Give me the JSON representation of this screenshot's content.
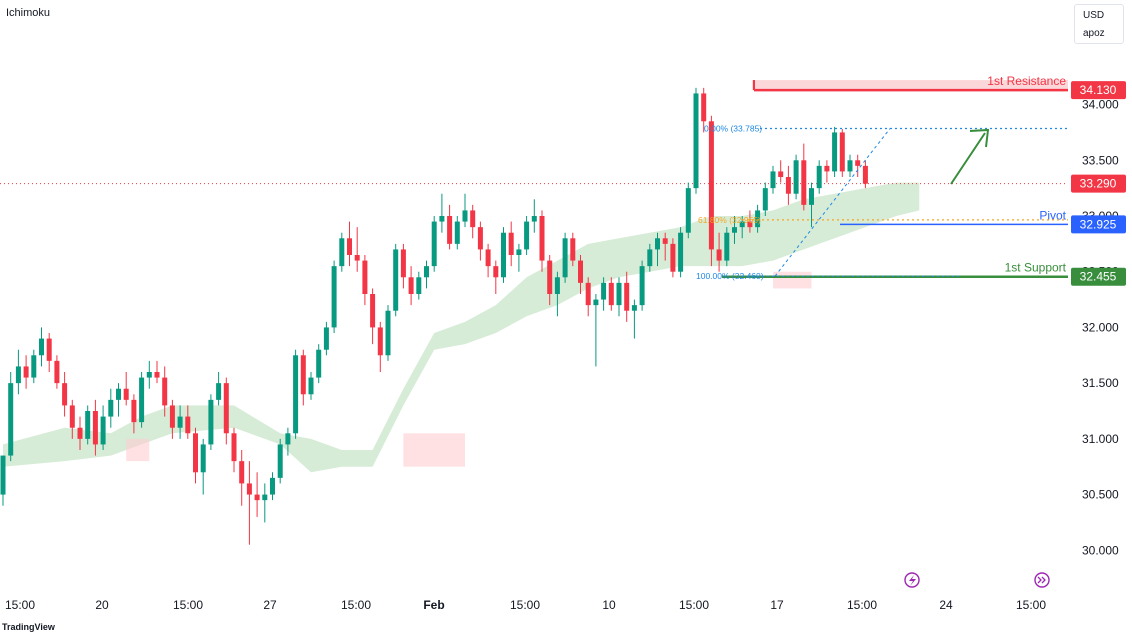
{
  "indicator": "Ichimoku",
  "currency": "USD",
  "unit": "apoz",
  "watermark": "TradingView",
  "colors": {
    "up": "#089981",
    "down": "#f23645",
    "resistance": "#f23645",
    "pivot": "#2962ff",
    "support": "#388e3c",
    "fib": "#1e88e5",
    "fib_mid": "#f5a623",
    "current": "#f23645",
    "kumo_bull": "#c8e6c9",
    "kumo_bear": "#ffcdd2"
  },
  "icons": [
    "lightning-icon",
    "forward-arrow-icon"
  ],
  "chart_data": {
    "type": "candlestick",
    "ylim": [
      29.85,
      34.4
    ],
    "ticks_y": [
      "34.000",
      "33.500",
      "33.000",
      "32.500",
      "32.000",
      "31.500",
      "31.000",
      "30.500",
      "30.000"
    ],
    "ticks_y_values": [
      34.0,
      33.5,
      33.0,
      32.5,
      32.0,
      31.5,
      31.0,
      30.5,
      30.0
    ],
    "ticks_x": [
      "15:00",
      "20",
      "15:00",
      "27",
      "15:00",
      "Feb",
      "15:00",
      "10",
      "15:00",
      "17",
      "15:00",
      "24",
      "15:00"
    ],
    "ticks_x_bold": [
      false,
      false,
      false,
      false,
      false,
      true,
      false,
      false,
      false,
      false,
      false,
      false,
      false
    ],
    "levels": [
      {
        "name": "1st Resistance",
        "value": 34.13,
        "label": "34.130",
        "kind": "resistance"
      },
      {
        "name": "Pivot",
        "value": 32.925,
        "label": "32.925",
        "kind": "pivot"
      },
      {
        "name": "1st Support",
        "value": 32.455,
        "label": "32.455",
        "kind": "support"
      }
    ],
    "current_price": {
      "value": 33.29,
      "label": "33.290"
    },
    "fib_levels": [
      {
        "label": "0.00% (33.785)",
        "value": 33.785
      },
      {
        "label": "61.80% (32.965)",
        "value": 32.965
      },
      {
        "label": "100.00% (32.460)",
        "value": 32.46
      }
    ],
    "candles": [
      [
        30.5,
        30.85,
        30.4,
        30.85
      ],
      [
        30.85,
        31.6,
        30.8,
        31.5
      ],
      [
        31.5,
        31.8,
        31.4,
        31.65
      ],
      [
        31.65,
        31.75,
        31.45,
        31.55
      ],
      [
        31.55,
        31.8,
        31.5,
        31.75
      ],
      [
        31.75,
        32.0,
        31.65,
        31.9
      ],
      [
        31.9,
        31.95,
        31.6,
        31.7
      ],
      [
        31.7,
        31.75,
        31.45,
        31.5
      ],
      [
        31.5,
        31.6,
        31.2,
        31.3
      ],
      [
        31.3,
        31.35,
        31.0,
        31.1
      ],
      [
        31.1,
        31.2,
        30.9,
        31.0
      ],
      [
        31.0,
        31.3,
        30.95,
        31.25
      ],
      [
        31.25,
        31.35,
        30.85,
        30.95
      ],
      [
        30.95,
        31.3,
        30.9,
        31.2
      ],
      [
        31.2,
        31.45,
        31.1,
        31.35
      ],
      [
        31.35,
        31.5,
        31.2,
        31.45
      ],
      [
        31.45,
        31.6,
        31.3,
        31.35
      ],
      [
        31.35,
        31.4,
        31.05,
        31.15
      ],
      [
        31.15,
        31.6,
        31.1,
        31.55
      ],
      [
        31.55,
        31.7,
        31.45,
        31.6
      ],
      [
        31.6,
        31.7,
        31.5,
        31.55
      ],
      [
        31.55,
        31.65,
        31.2,
        31.3
      ],
      [
        31.3,
        31.35,
        31.0,
        31.1
      ],
      [
        31.1,
        31.3,
        31.0,
        31.2
      ],
      [
        31.2,
        31.3,
        31.0,
        31.05
      ],
      [
        31.05,
        31.1,
        30.6,
        30.7
      ],
      [
        30.7,
        31.0,
        30.5,
        30.95
      ],
      [
        30.95,
        31.4,
        30.9,
        31.35
      ],
      [
        31.35,
        31.6,
        31.3,
        31.5
      ],
      [
        31.5,
        31.55,
        30.95,
        31.05
      ],
      [
        31.05,
        31.1,
        30.7,
        30.8
      ],
      [
        30.8,
        30.9,
        30.4,
        30.6
      ],
      [
        30.6,
        30.8,
        30.05,
        30.5
      ],
      [
        30.5,
        30.7,
        30.3,
        30.45
      ],
      [
        30.45,
        30.6,
        30.25,
        30.5
      ],
      [
        30.5,
        30.7,
        30.45,
        30.65
      ],
      [
        30.65,
        31.0,
        30.6,
        30.95
      ],
      [
        30.95,
        31.1,
        30.85,
        31.05
      ],
      [
        31.05,
        31.8,
        31.0,
        31.75
      ],
      [
        31.75,
        31.8,
        31.3,
        31.4
      ],
      [
        31.4,
        31.6,
        31.35,
        31.55
      ],
      [
        31.55,
        31.85,
        31.5,
        31.8
      ],
      [
        31.8,
        32.05,
        31.75,
        32.0
      ],
      [
        32.0,
        32.6,
        31.95,
        32.55
      ],
      [
        32.55,
        32.85,
        32.5,
        32.8
      ],
      [
        32.8,
        32.95,
        32.55,
        32.65
      ],
      [
        32.65,
        32.9,
        32.5,
        32.6
      ],
      [
        32.6,
        32.65,
        32.2,
        32.3
      ],
      [
        32.3,
        32.35,
        31.85,
        32.0
      ],
      [
        32.0,
        32.05,
        31.6,
        31.75
      ],
      [
        31.75,
        32.2,
        31.7,
        32.15
      ],
      [
        32.15,
        32.75,
        32.1,
        32.7
      ],
      [
        32.7,
        32.75,
        32.35,
        32.45
      ],
      [
        32.45,
        32.55,
        32.2,
        32.3
      ],
      [
        32.3,
        32.5,
        32.25,
        32.45
      ],
      [
        32.45,
        32.6,
        32.35,
        32.55
      ],
      [
        32.55,
        33.0,
        32.5,
        32.95
      ],
      [
        32.95,
        33.2,
        32.85,
        33.0
      ],
      [
        33.0,
        33.1,
        32.7,
        32.75
      ],
      [
        32.75,
        33.0,
        32.7,
        32.95
      ],
      [
        32.95,
        33.2,
        32.9,
        33.05
      ],
      [
        33.05,
        33.1,
        32.8,
        32.9
      ],
      [
        32.9,
        32.95,
        32.6,
        32.7
      ],
      [
        32.7,
        32.75,
        32.45,
        32.55
      ],
      [
        32.55,
        32.6,
        32.3,
        32.45
      ],
      [
        32.45,
        32.9,
        32.4,
        32.85
      ],
      [
        32.85,
        32.95,
        32.55,
        32.65
      ],
      [
        32.65,
        32.75,
        32.5,
        32.7
      ],
      [
        32.7,
        33.0,
        32.65,
        32.95
      ],
      [
        32.95,
        33.15,
        32.85,
        33.0
      ],
      [
        33.0,
        33.05,
        32.5,
        32.6
      ],
      [
        32.6,
        32.65,
        32.2,
        32.3
      ],
      [
        32.3,
        32.5,
        32.1,
        32.45
      ],
      [
        32.45,
        32.85,
        32.4,
        32.8
      ],
      [
        32.8,
        32.85,
        32.55,
        32.6
      ],
      [
        32.6,
        32.65,
        32.3,
        32.4
      ],
      [
        32.4,
        32.45,
        32.1,
        32.2
      ],
      [
        32.2,
        32.3,
        31.65,
        32.25
      ],
      [
        32.25,
        32.45,
        32.15,
        32.4
      ],
      [
        32.4,
        32.45,
        32.15,
        32.2
      ],
      [
        32.2,
        32.45,
        32.1,
        32.4
      ],
      [
        32.4,
        32.5,
        32.05,
        32.15
      ],
      [
        32.15,
        32.25,
        31.9,
        32.2
      ],
      [
        32.2,
        32.6,
        32.15,
        32.55
      ],
      [
        32.55,
        32.75,
        32.5,
        32.7
      ],
      [
        32.7,
        32.85,
        32.55,
        32.8
      ],
      [
        32.8,
        32.85,
        32.6,
        32.75
      ],
      [
        32.75,
        32.8,
        32.45,
        32.5
      ],
      [
        32.5,
        32.9,
        32.45,
        32.85
      ],
      [
        32.85,
        33.3,
        32.8,
        33.25
      ],
      [
        33.25,
        34.15,
        33.2,
        34.1
      ],
      [
        34.1,
        34.15,
        33.75,
        33.85
      ],
      [
        33.85,
        33.9,
        32.55,
        32.7
      ],
      [
        32.7,
        32.85,
        32.5,
        32.6
      ],
      [
        32.6,
        32.9,
        32.55,
        32.85
      ],
      [
        32.85,
        33.0,
        32.75,
        32.9
      ],
      [
        32.9,
        33.0,
        32.8,
        32.95
      ],
      [
        32.95,
        33.05,
        32.85,
        32.9
      ],
      [
        32.9,
        33.1,
        32.85,
        33.05
      ],
      [
        33.05,
        33.3,
        33.0,
        33.25
      ],
      [
        33.25,
        33.45,
        33.2,
        33.4
      ],
      [
        33.4,
        33.5,
        33.3,
        33.35
      ],
      [
        33.35,
        33.45,
        33.1,
        33.2
      ],
      [
        33.2,
        33.55,
        33.15,
        33.5
      ],
      [
        33.5,
        33.65,
        33.05,
        33.1
      ],
      [
        33.1,
        33.3,
        32.9,
        33.25
      ],
      [
        33.25,
        33.5,
        33.2,
        33.45
      ],
      [
        33.45,
        33.5,
        33.3,
        33.4
      ],
      [
        33.4,
        33.8,
        33.35,
        33.75
      ],
      [
        33.75,
        33.78,
        33.35,
        33.4
      ],
      [
        33.4,
        33.55,
        33.35,
        33.5
      ],
      [
        33.5,
        33.55,
        33.35,
        33.45
      ],
      [
        33.45,
        33.5,
        33.25,
        33.29
      ]
    ],
    "kumo_top": [
      [
        0,
        30.95
      ],
      [
        8,
        31.1
      ],
      [
        14,
        31.05
      ],
      [
        18,
        31.2
      ],
      [
        22,
        31.3
      ],
      [
        30,
        31.3
      ],
      [
        36,
        31.05
      ],
      [
        40,
        31.0
      ],
      [
        44,
        30.9
      ],
      [
        48,
        30.9
      ],
      [
        52,
        31.45
      ],
      [
        56,
        31.95
      ],
      [
        60,
        32.05
      ],
      [
        64,
        32.2
      ],
      [
        68,
        32.45
      ],
      [
        72,
        32.6
      ],
      [
        76,
        32.75
      ],
      [
        80,
        32.8
      ],
      [
        84,
        32.85
      ],
      [
        88,
        32.9
      ],
      [
        92,
        33.0
      ],
      [
        96,
        33.0
      ],
      [
        100,
        33.05
      ],
      [
        104,
        33.15
      ],
      [
        108,
        33.2
      ],
      [
        112,
        33.25
      ],
      [
        116,
        33.3
      ],
      [
        119,
        33.3
      ]
    ],
    "kumo_bottom": [
      [
        0,
        30.75
      ],
      [
        8,
        30.8
      ],
      [
        14,
        30.85
      ],
      [
        18,
        30.95
      ],
      [
        22,
        31.05
      ],
      [
        30,
        31.1
      ],
      [
        36,
        30.95
      ],
      [
        40,
        30.7
      ],
      [
        44,
        30.75
      ],
      [
        48,
        30.75
      ],
      [
        52,
        31.3
      ],
      [
        56,
        31.8
      ],
      [
        60,
        31.85
      ],
      [
        64,
        31.95
      ],
      [
        68,
        32.1
      ],
      [
        72,
        32.2
      ],
      [
        76,
        32.35
      ],
      [
        80,
        32.45
      ],
      [
        84,
        32.5
      ],
      [
        88,
        32.55
      ],
      [
        92,
        32.55
      ],
      [
        96,
        32.55
      ],
      [
        100,
        32.6
      ],
      [
        104,
        32.7
      ],
      [
        108,
        32.8
      ],
      [
        112,
        32.9
      ],
      [
        116,
        33.0
      ],
      [
        119,
        33.05
      ]
    ]
  }
}
